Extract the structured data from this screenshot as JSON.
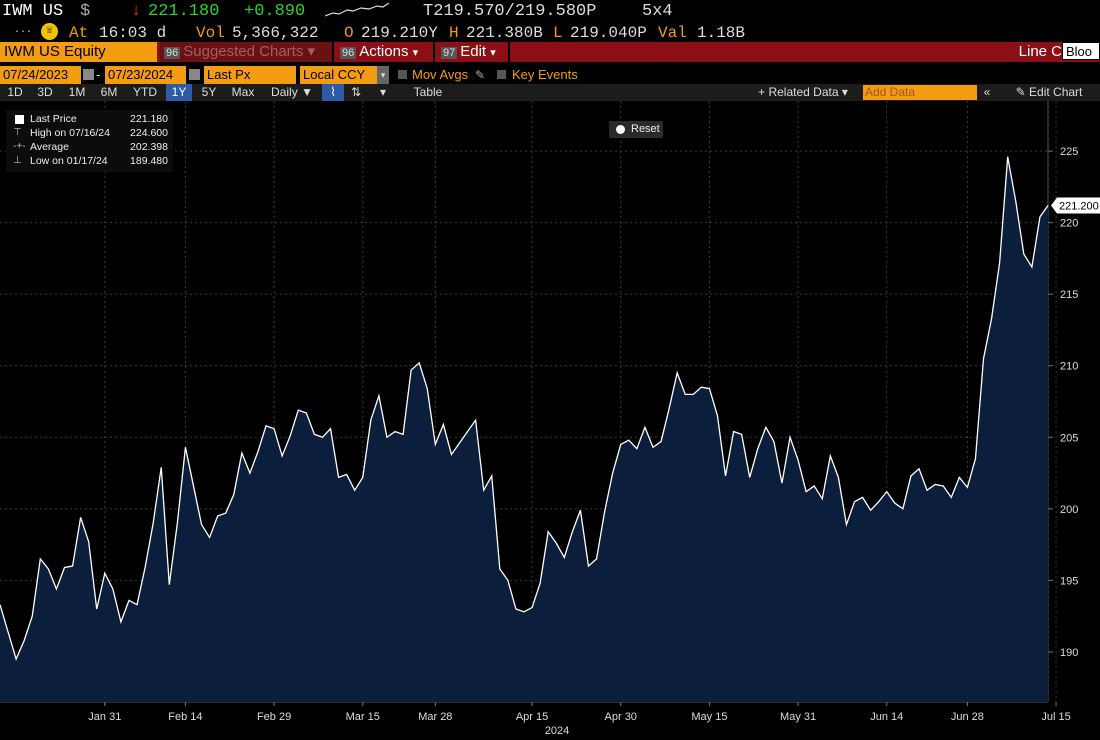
{
  "quote": {
    "ticker": "IWM US",
    "currency_symbol": "$",
    "last_price": "221.180",
    "change": "+0.890",
    "tick_arrow": "↓",
    "bid_ask": "T219.570/219.580P",
    "size": "5x4",
    "at_label": "At",
    "time": "16:03 d",
    "vol_label": "Vol",
    "volume": "5,366,322",
    "open_label": "O",
    "open": "219.210Y",
    "high_label": "H",
    "high": "221.380B",
    "low_label": "L",
    "low": "219.040P",
    "val_label": "Val",
    "value": "1.18B"
  },
  "menubar": {
    "security": "IWM US Equity",
    "suggested_num": "96",
    "suggested": "Suggested Charts",
    "actions_num": "96",
    "actions": "Actions",
    "edit_num": "97",
    "edit": "Edit",
    "chart_type": "Line C",
    "blo": "Bloo"
  },
  "fields": {
    "start_date": "07/24/2023",
    "end_date": "07/23/2024",
    "dash": "-",
    "price_field": "Last Px",
    "currency": "Local CCY",
    "mov_avgs": "Mov Avgs",
    "key_events": "Key Events"
  },
  "range_toolbar": {
    "ranges": [
      "1D",
      "3D",
      "1M",
      "6M",
      "YTD",
      "1Y",
      "5Y",
      "Max"
    ],
    "active_range": "1Y",
    "frequency": "Daily",
    "table": "Table",
    "related_data": "Related Data",
    "add_data": "Add Data",
    "edit_chart": "Edit Chart"
  },
  "legend": {
    "rows": [
      {
        "icon": "square",
        "label": "Last Price",
        "value": "221.180"
      },
      {
        "icon": "high",
        "label": "High on 07/16/24",
        "value": "224.600"
      },
      {
        "icon": "average",
        "label": "Average",
        "value": "202.398"
      },
      {
        "icon": "low",
        "label": "Low on 01/17/24",
        "value": "189.480"
      }
    ]
  },
  "reset_label": "Reset",
  "colors": {
    "fill": "#0b1f3c",
    "line": "#ffffff",
    "accent": "#f39c12",
    "menubar": "#8b0f14",
    "positive": "#2fd12f",
    "negative": "#ff2a2a"
  },
  "chart_data": {
    "type": "area",
    "title": "",
    "xlabel": "2024",
    "ylabel": "",
    "ylim": [
      186.5,
      228.5
    ],
    "yticks": [
      190,
      195,
      200,
      205,
      210,
      215,
      220,
      225
    ],
    "xtick_labels": [
      "Jan 31",
      "Feb 14",
      "Feb 29",
      "Mar 15",
      "Mar 28",
      "Apr 15",
      "Apr 30",
      "May 15",
      "May 31",
      "Jun 14",
      "Jun 28",
      "Jul 15"
    ],
    "xtick_index": [
      13,
      23,
      34,
      45,
      54,
      66,
      77,
      88,
      99,
      110,
      120,
      131
    ],
    "year_label": "2024",
    "last_value_label": "221.200",
    "grid": true,
    "series": [
      {
        "values": [
          193.3,
          191.4,
          189.5,
          190.8,
          192.5,
          196.5,
          195.8,
          194.4,
          195.9,
          196.0,
          199.4,
          197.7,
          193.0,
          195.5,
          194.4,
          192.1,
          193.6,
          193.3,
          195.9,
          199.0,
          202.9,
          194.7,
          199.0,
          204.3,
          201.6,
          198.9,
          198.0,
          199.5,
          199.7,
          201.0,
          203.9,
          202.5,
          204.0,
          205.8,
          205.6,
          203.7,
          205.1,
          206.9,
          206.7,
          205.2,
          205.0,
          205.6,
          202.2,
          202.4,
          201.3,
          202.2,
          206.2,
          207.9,
          205.0,
          205.4,
          205.2,
          209.7,
          210.2,
          208.4,
          204.5,
          205.9,
          203.8,
          204.6,
          205.4,
          206.2,
          201.3,
          202.3,
          195.8,
          195.0,
          193.0,
          192.8,
          193.1,
          194.8,
          198.4,
          197.6,
          196.6,
          198.4,
          199.9,
          196.0,
          196.5,
          199.8,
          202.5,
          204.5,
          204.8,
          204.2,
          205.7,
          204.3,
          204.7,
          207.0,
          209.5,
          208.0,
          208.0,
          208.5,
          208.4,
          206.5,
          202.3,
          205.4,
          205.2,
          202.2,
          204.2,
          205.7,
          204.7,
          201.8,
          205.0,
          203.4,
          201.2,
          201.6,
          200.7,
          203.7,
          202.2,
          198.9,
          200.5,
          200.8,
          199.9,
          200.5,
          201.2,
          200.4,
          200.0,
          202.3,
          202.8,
          201.3,
          201.7,
          201.6,
          200.8,
          202.2,
          201.5,
          203.5,
          210.5,
          213.3,
          217.2,
          224.6,
          221.5,
          217.8,
          216.9,
          220.4,
          221.2
        ]
      }
    ]
  }
}
